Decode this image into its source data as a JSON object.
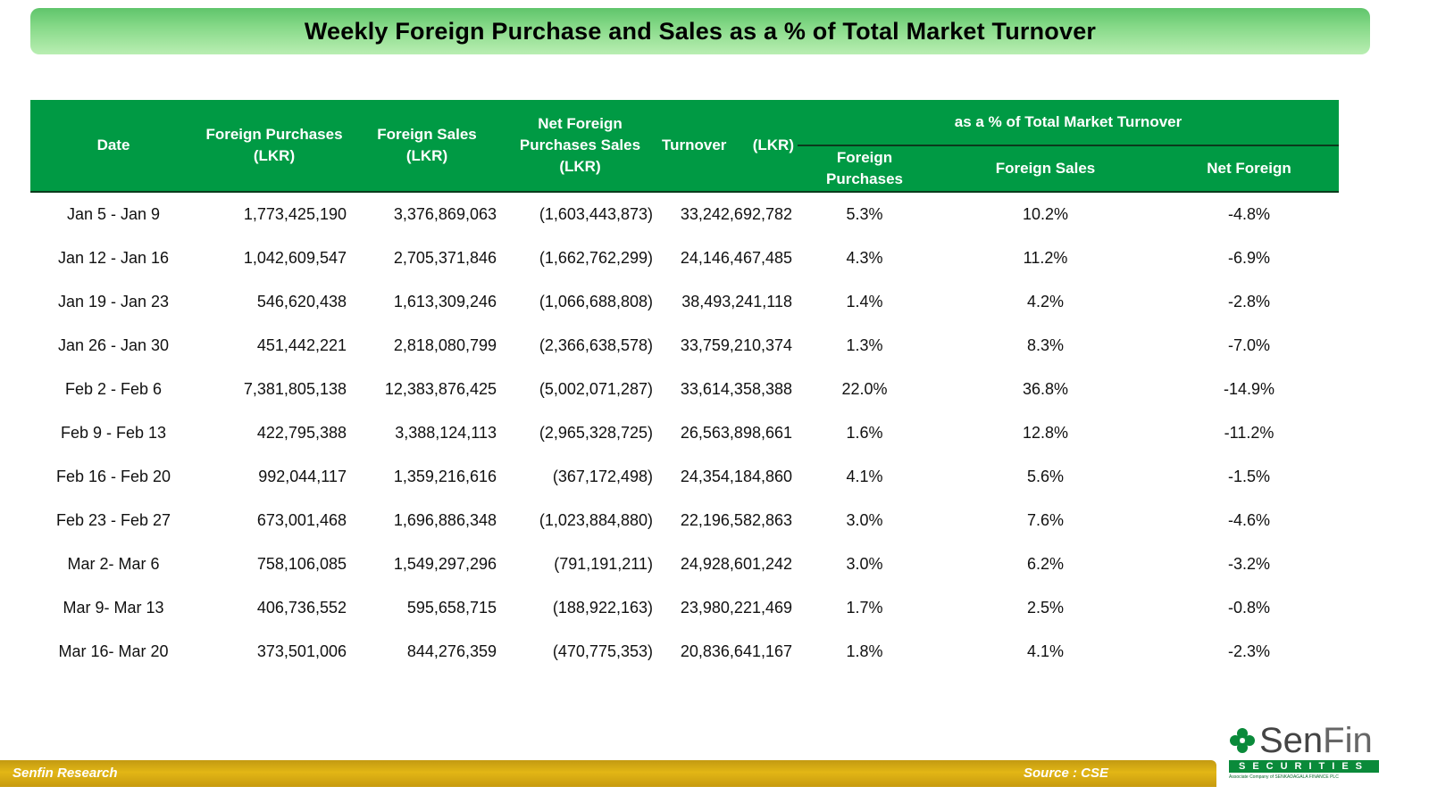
{
  "title": "Weekly Foreign Purchase and Sales as a % of Total Market  Turnover",
  "headers": {
    "date": "Date",
    "foreign_purchases": "Foreign Purchases (LKR)",
    "foreign_sales": "Foreign Sales (LKR)",
    "net_foreign": "Net Foreign Purchases Sales (LKR)",
    "turnover": "Turnover",
    "turnover_unit": "(LKR)",
    "group": "as a % of Total Market  Turnover",
    "pct_foreign_purchases": "Foreign Purchases",
    "pct_foreign_sales": "Foreign Sales",
    "pct_net_foreign": "Net Foreign"
  },
  "rows": [
    {
      "date": "Jan 5 - Jan 9",
      "fp": "1,773,425,190",
      "fs": "3,376,869,063",
      "net": "(1,603,443,873)",
      "turnover": "33,242,692,782",
      "pfp": "5.3%",
      "pfs": "10.2%",
      "pnet": "-4.8%"
    },
    {
      "date": "Jan 12 - Jan 16",
      "fp": "1,042,609,547",
      "fs": "2,705,371,846",
      "net": "(1,662,762,299)",
      "turnover": "24,146,467,485",
      "pfp": "4.3%",
      "pfs": "11.2%",
      "pnet": "-6.9%"
    },
    {
      "date": "Jan 19 - Jan 23",
      "fp": "546,620,438",
      "fs": "1,613,309,246",
      "net": "(1,066,688,808)",
      "turnover": "38,493,241,118",
      "pfp": "1.4%",
      "pfs": "4.2%",
      "pnet": "-2.8%"
    },
    {
      "date": "Jan 26 - Jan 30",
      "fp": "451,442,221",
      "fs": "2,818,080,799",
      "net": "(2,366,638,578)",
      "turnover": "33,759,210,374",
      "pfp": "1.3%",
      "pfs": "8.3%",
      "pnet": "-7.0%"
    },
    {
      "date": "Feb 2 - Feb 6",
      "fp": "7,381,805,138",
      "fs": "12,383,876,425",
      "net": "(5,002,071,287)",
      "turnover": "33,614,358,388",
      "pfp": "22.0%",
      "pfs": "36.8%",
      "pnet": "-14.9%"
    },
    {
      "date": "Feb 9 - Feb 13",
      "fp": "422,795,388",
      "fs": "3,388,124,113",
      "net": "(2,965,328,725)",
      "turnover": "26,563,898,661",
      "pfp": "1.6%",
      "pfs": "12.8%",
      "pnet": "-11.2%"
    },
    {
      "date": "Feb 16 - Feb 20",
      "fp": "992,044,117",
      "fs": "1,359,216,616",
      "net": "(367,172,498)",
      "turnover": "24,354,184,860",
      "pfp": "4.1%",
      "pfs": "5.6%",
      "pnet": "-1.5%"
    },
    {
      "date": "Feb 23 - Feb 27",
      "fp": "673,001,468",
      "fs": "1,696,886,348",
      "net": "(1,023,884,880)",
      "turnover": "22,196,582,863",
      "pfp": "3.0%",
      "pfs": "7.6%",
      "pnet": "-4.6%"
    },
    {
      "date": "Mar 2- Mar 6",
      "fp": "758,106,085",
      "fs": "1,549,297,296",
      "net": "(791,191,211)",
      "turnover": "24,928,601,242",
      "pfp": "3.0%",
      "pfs": "6.2%",
      "pnet": "-3.2%"
    },
    {
      "date": "Mar 9- Mar 13",
      "fp": "406,736,552",
      "fs": "595,658,715",
      "net": "(188,922,163)",
      "turnover": "23,980,221,469",
      "pfp": "1.7%",
      "pfs": "2.5%",
      "pnet": "-0.8%"
    },
    {
      "date": "Mar 16- Mar 20",
      "fp": "373,501,006",
      "fs": "844,276,359",
      "net": "(470,775,353)",
      "turnover": "20,836,641,167",
      "pfp": "1.8%",
      "pfs": "4.1%",
      "pnet": "-2.3%"
    }
  ],
  "footer": {
    "left": "Senfin Research",
    "right": "Source : CSE"
  },
  "logo": {
    "name_part1": "Sen",
    "name_part2": "Fin",
    "subtitle": "SECURITIES",
    "tagline": "Associate Company of SENKADAGALA FINANCE PLC"
  },
  "colors": {
    "header_green": "#009a44",
    "banner_green": "#86d988",
    "footer_gold": "#e2b615"
  }
}
